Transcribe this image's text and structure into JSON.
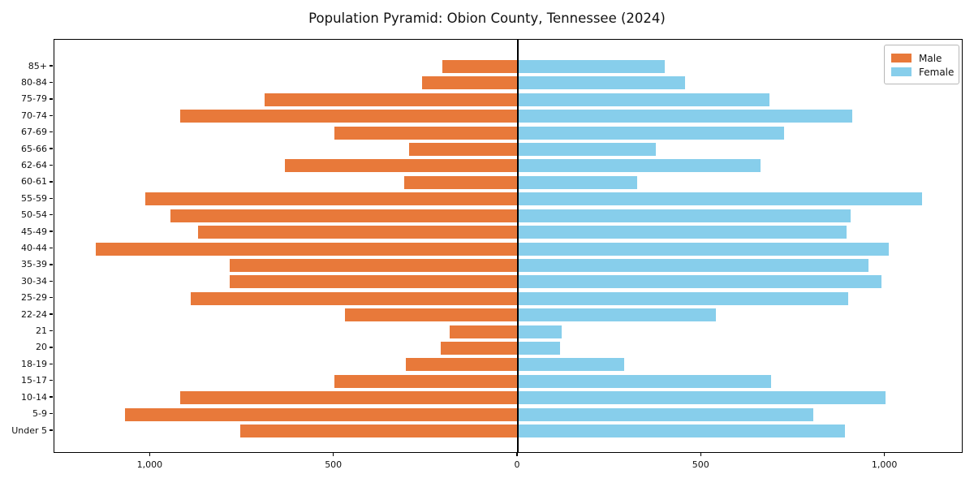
{
  "title": "Population Pyramid: Obion County, Tennessee (2024)",
  "legend": {
    "male_label": "Male",
    "female_label": "Female",
    "position": "upper right"
  },
  "colors": {
    "male": "#e8793a",
    "female": "#87ceeb",
    "axis": "#000000",
    "legend_border": "#b7b7b7",
    "background": "#ffffff"
  },
  "x_axis": {
    "tick_values": [
      -1000,
      -500,
      0,
      500,
      1000
    ],
    "tick_labels": [
      "1,000",
      "500",
      "0",
      "500",
      "1,000"
    ]
  },
  "chart_data": {
    "type": "bar",
    "variant": "population-pyramid",
    "orientation": "horizontal",
    "title": "Population Pyramid: Obion County, Tennessee (2024)",
    "xlabel": "",
    "ylabel": "",
    "xlim": [
      -1263,
      1213
    ],
    "grid": false,
    "legend_position": "upper right",
    "categories": [
      "85+",
      "80-84",
      "75-79",
      "70-74",
      "67-69",
      "65-66",
      "62-64",
      "60-61",
      "55-59",
      "50-54",
      "45-49",
      "40-44",
      "35-39",
      "30-34",
      "25-29",
      "22-24",
      "21",
      "20",
      "18-19",
      "15-17",
      "10-14",
      "5-9",
      "Under 5"
    ],
    "series": [
      {
        "name": "Male",
        "side": "left",
        "color": "#e8793a",
        "values": [
          205,
          260,
          690,
          920,
          500,
          295,
          635,
          310,
          1015,
          945,
          870,
          1150,
          785,
          785,
          890,
          470,
          185,
          210,
          305,
          500,
          920,
          1070,
          755
        ]
      },
      {
        "name": "Female",
        "side": "right",
        "color": "#87ceeb",
        "values": [
          400,
          455,
          685,
          910,
          725,
          375,
          660,
          325,
          1100,
          905,
          895,
          1010,
          955,
          990,
          900,
          540,
          120,
          115,
          290,
          690,
          1000,
          805,
          890
        ]
      }
    ]
  }
}
